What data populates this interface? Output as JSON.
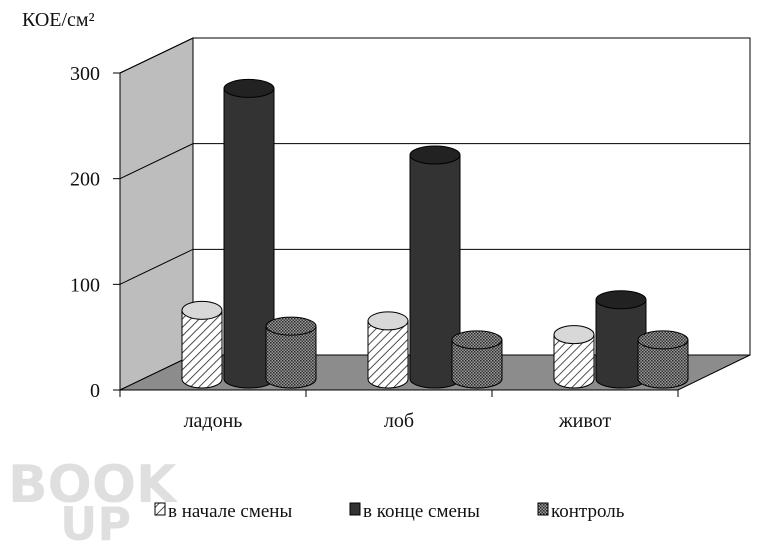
{
  "chart_data": {
    "type": "bar",
    "ylabel": "КОЕ/см²",
    "ylim": [
      0,
      300
    ],
    "yticks": [
      "0",
      "100",
      "200",
      "300"
    ],
    "categories": [
      "ладонь",
      "лоб",
      "живот"
    ],
    "series": [
      {
        "name": "в начале смены",
        "values": [
          65,
          55,
          42
        ],
        "pattern": "diagonal-hatch",
        "color": "#ffffff"
      },
      {
        "name": "в конце смены",
        "values": [
          275,
          212,
          75
        ],
        "pattern": "solid",
        "color": "#333333"
      },
      {
        "name": "контроль",
        "values": [
          50,
          37,
          37
        ],
        "pattern": "dense-dots",
        "color": "#6b6b6b"
      }
    ],
    "grid": true,
    "legend_position": "bottom",
    "style": "3d-cylinder",
    "colors": {
      "back_wall": "#ffffff",
      "side_wall": "#bdbdbd",
      "floor": "#8c8c8c"
    }
  },
  "watermark": {
    "line1": "BOOK",
    "line2": "UP"
  }
}
